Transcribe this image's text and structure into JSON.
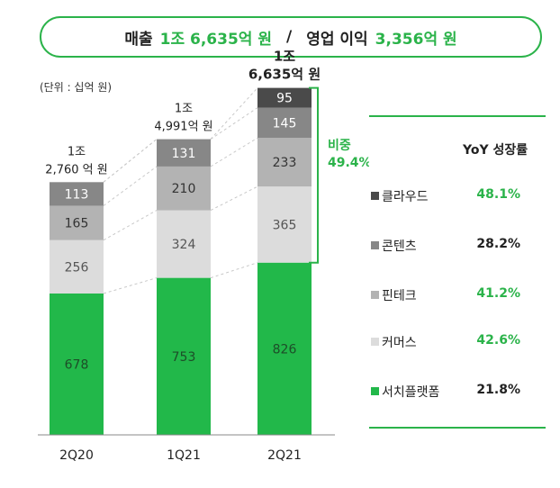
{
  "header": {
    "revenue_label": "매출",
    "revenue_value": "1조 6,635억 원",
    "separator": "/",
    "op_label": "영업 이익",
    "op_value": "3,356억 원"
  },
  "unit_note": "(단위 : 십억 원)",
  "colors": {
    "green": "#2bb34a",
    "cloud": "#4a4a4a",
    "content": "#878787",
    "fintech": "#b3b3b3",
    "commerce": "#dcdcdc",
    "search": "#22b84a"
  },
  "chart_data": {
    "type": "bar",
    "stacked": true,
    "categories": [
      "2Q20",
      "1Q21",
      "2Q21"
    ],
    "series": [
      {
        "name": "서치플랫폼",
        "values": [
          678,
          753,
          826
        ]
      },
      {
        "name": "커머스",
        "values": [
          256,
          324,
          365
        ]
      },
      {
        "name": "핀테크",
        "values": [
          165,
          210,
          233
        ]
      },
      {
        "name": "콘텐츠",
        "values": [
          113,
          131,
          145
        ]
      },
      {
        "name": "클라우드",
        "values": [
          null,
          null,
          95
        ]
      }
    ],
    "totals": [
      {
        "line1": "1조",
        "line2": "2,760 억 원"
      },
      {
        "line1": "1조",
        "line2": "4,991억 원"
      },
      {
        "line1": "1조",
        "line2": "6,635억 원"
      }
    ],
    "bracket_label": "비중",
    "bracket_value": "49.4%"
  },
  "legend": {
    "header": "YoY 성장률",
    "items": [
      {
        "name": "클라우드",
        "yoy": "48.1%",
        "yoy_color": "#2bb34a"
      },
      {
        "name": "콘텐츠",
        "yoy": "28.2%",
        "yoy_color": "#222222"
      },
      {
        "name": "핀테크",
        "yoy": "41.2%",
        "yoy_color": "#2bb34a"
      },
      {
        "name": "커머스",
        "yoy": "42.6%",
        "yoy_color": "#2bb34a"
      },
      {
        "name": "서치플랫폼",
        "yoy": "21.8%",
        "yoy_color": "#222222"
      }
    ]
  }
}
